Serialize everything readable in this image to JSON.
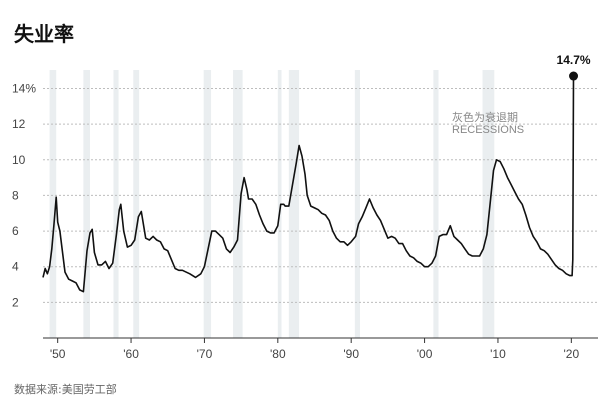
{
  "chart_data": {
    "type": "line",
    "title": "失业率",
    "source": "数据来源:美国劳工部",
    "xlim": [
      1948,
      2020.5
    ],
    "ylim": [
      0,
      15.6
    ],
    "yticks": [
      2,
      4,
      6,
      8,
      10,
      12,
      14
    ],
    "ytick_labels": [
      "2",
      "4",
      "6",
      "8",
      "10",
      "12",
      "14%"
    ],
    "xticks": [
      1950,
      1960,
      1970,
      1980,
      1990,
      2000,
      2010,
      2020
    ],
    "xtick_labels": [
      "'50",
      "'60",
      "'70",
      "'80",
      "'90",
      "'00",
      "'10",
      "'20"
    ],
    "grid": "horizontal dashed",
    "recessions": [
      [
        1948.9,
        1949.8
      ],
      [
        1953.5,
        1954.4
      ],
      [
        1957.6,
        1958.3
      ],
      [
        1960.3,
        1961.1
      ],
      [
        1969.9,
        1970.9
      ],
      [
        1973.9,
        1975.2
      ],
      [
        1980.0,
        1980.5
      ],
      [
        1981.5,
        1982.9
      ],
      [
        1990.5,
        1991.2
      ],
      [
        2001.2,
        2001.9
      ],
      [
        2007.9,
        2009.5
      ]
    ],
    "recession_note": [
      "灰色为衰退期",
      "RECESSIONS"
    ],
    "peak_label": "14.7%",
    "series": [
      {
        "values": [
          [
            1948.0,
            3.4
          ],
          [
            1948.3,
            3.9
          ],
          [
            1948.6,
            3.6
          ],
          [
            1948.9,
            4.0
          ],
          [
            1949.2,
            5.0
          ],
          [
            1949.5,
            6.4
          ],
          [
            1949.8,
            7.9
          ],
          [
            1950.0,
            6.5
          ],
          [
            1950.3,
            6.0
          ],
          [
            1950.6,
            5.0
          ],
          [
            1951.0,
            3.7
          ],
          [
            1951.5,
            3.3
          ],
          [
            1952.0,
            3.2
          ],
          [
            1952.5,
            3.1
          ],
          [
            1953.0,
            2.7
          ],
          [
            1953.5,
            2.6
          ],
          [
            1954.0,
            4.9
          ],
          [
            1954.4,
            5.9
          ],
          [
            1954.7,
            6.1
          ],
          [
            1955.0,
            4.8
          ],
          [
            1955.5,
            4.1
          ],
          [
            1956.0,
            4.1
          ],
          [
            1956.5,
            4.3
          ],
          [
            1957.0,
            3.9
          ],
          [
            1957.5,
            4.2
          ],
          [
            1958.0,
            5.8
          ],
          [
            1958.4,
            7.2
          ],
          [
            1958.6,
            7.5
          ],
          [
            1959.0,
            6.0
          ],
          [
            1959.5,
            5.1
          ],
          [
            1960.0,
            5.2
          ],
          [
            1960.5,
            5.5
          ],
          [
            1961.0,
            6.8
          ],
          [
            1961.4,
            7.1
          ],
          [
            1962.0,
            5.6
          ],
          [
            1962.5,
            5.5
          ],
          [
            1963.0,
            5.7
          ],
          [
            1963.5,
            5.5
          ],
          [
            1964.0,
            5.4
          ],
          [
            1964.5,
            5.0
          ],
          [
            1965.0,
            4.9
          ],
          [
            1965.5,
            4.4
          ],
          [
            1966.0,
            3.9
          ],
          [
            1966.5,
            3.8
          ],
          [
            1967.0,
            3.8
          ],
          [
            1968.0,
            3.6
          ],
          [
            1968.8,
            3.4
          ],
          [
            1969.5,
            3.6
          ],
          [
            1970.0,
            4.0
          ],
          [
            1970.5,
            5.0
          ],
          [
            1971.0,
            6.0
          ],
          [
            1971.5,
            6.0
          ],
          [
            1972.0,
            5.8
          ],
          [
            1972.5,
            5.6
          ],
          [
            1973.0,
            5.0
          ],
          [
            1973.5,
            4.8
          ],
          [
            1974.0,
            5.1
          ],
          [
            1974.5,
            5.5
          ],
          [
            1975.0,
            8.1
          ],
          [
            1975.4,
            9.0
          ],
          [
            1975.8,
            8.3
          ],
          [
            1976.0,
            7.8
          ],
          [
            1976.5,
            7.8
          ],
          [
            1977.0,
            7.5
          ],
          [
            1977.5,
            6.9
          ],
          [
            1978.0,
            6.4
          ],
          [
            1978.5,
            6.0
          ],
          [
            1979.0,
            5.9
          ],
          [
            1979.5,
            5.9
          ],
          [
            1980.0,
            6.3
          ],
          [
            1980.4,
            7.5
          ],
          [
            1980.8,
            7.5
          ],
          [
            1981.0,
            7.4
          ],
          [
            1981.5,
            7.4
          ],
          [
            1982.0,
            8.6
          ],
          [
            1982.5,
            9.8
          ],
          [
            1982.9,
            10.8
          ],
          [
            1983.3,
            10.2
          ],
          [
            1983.7,
            9.2
          ],
          [
            1984.0,
            8.0
          ],
          [
            1984.5,
            7.4
          ],
          [
            1985.0,
            7.3
          ],
          [
            1985.5,
            7.2
          ],
          [
            1986.0,
            7.0
          ],
          [
            1986.5,
            6.9
          ],
          [
            1987.0,
            6.6
          ],
          [
            1987.5,
            6.0
          ],
          [
            1988.0,
            5.6
          ],
          [
            1988.5,
            5.4
          ],
          [
            1989.0,
            5.4
          ],
          [
            1989.5,
            5.2
          ],
          [
            1990.0,
            5.4
          ],
          [
            1990.6,
            5.7
          ],
          [
            1991.0,
            6.4
          ],
          [
            1991.5,
            6.8
          ],
          [
            1992.0,
            7.3
          ],
          [
            1992.5,
            7.8
          ],
          [
            1993.0,
            7.3
          ],
          [
            1993.5,
            6.9
          ],
          [
            1994.0,
            6.6
          ],
          [
            1994.5,
            6.1
          ],
          [
            1995.0,
            5.6
          ],
          [
            1995.5,
            5.7
          ],
          [
            1996.0,
            5.6
          ],
          [
            1996.5,
            5.3
          ],
          [
            1997.0,
            5.3
          ],
          [
            1997.5,
            4.9
          ],
          [
            1998.0,
            4.6
          ],
          [
            1998.5,
            4.5
          ],
          [
            1999.0,
            4.3
          ],
          [
            1999.5,
            4.2
          ],
          [
            2000.0,
            4.0
          ],
          [
            2000.5,
            4.0
          ],
          [
            2001.0,
            4.2
          ],
          [
            2001.5,
            4.6
          ],
          [
            2002.0,
            5.7
          ],
          [
            2002.5,
            5.8
          ],
          [
            2003.0,
            5.8
          ],
          [
            2003.5,
            6.3
          ],
          [
            2004.0,
            5.7
          ],
          [
            2004.5,
            5.5
          ],
          [
            2005.0,
            5.3
          ],
          [
            2005.5,
            5.0
          ],
          [
            2006.0,
            4.7
          ],
          [
            2006.5,
            4.6
          ],
          [
            2007.0,
            4.6
          ],
          [
            2007.5,
            4.6
          ],
          [
            2008.0,
            5.0
          ],
          [
            2008.5,
            5.8
          ],
          [
            2009.0,
            7.8
          ],
          [
            2009.4,
            9.4
          ],
          [
            2009.8,
            10.0
          ],
          [
            2010.3,
            9.9
          ],
          [
            2010.8,
            9.5
          ],
          [
            2011.3,
            9.0
          ],
          [
            2011.8,
            8.6
          ],
          [
            2012.3,
            8.2
          ],
          [
            2012.8,
            7.8
          ],
          [
            2013.3,
            7.5
          ],
          [
            2013.8,
            6.9
          ],
          [
            2014.3,
            6.2
          ],
          [
            2014.8,
            5.7
          ],
          [
            2015.3,
            5.4
          ],
          [
            2015.8,
            5.0
          ],
          [
            2016.3,
            4.9
          ],
          [
            2016.8,
            4.7
          ],
          [
            2017.3,
            4.4
          ],
          [
            2017.8,
            4.1
          ],
          [
            2018.3,
            3.9
          ],
          [
            2018.8,
            3.8
          ],
          [
            2019.3,
            3.6
          ],
          [
            2019.8,
            3.5
          ],
          [
            2020.1,
            3.5
          ],
          [
            2020.2,
            4.4
          ],
          [
            2020.3,
            14.7
          ]
        ]
      }
    ]
  }
}
